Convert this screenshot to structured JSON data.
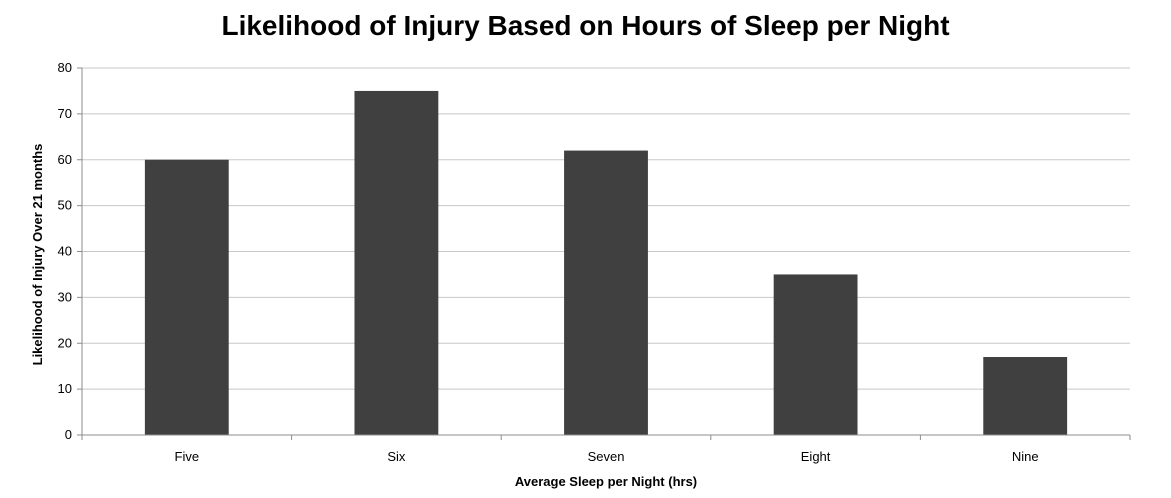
{
  "chart_data": {
    "type": "bar",
    "title": "Likelihood of Injury Based on Hours of Sleep per Night",
    "xlabel": "Average Sleep per Night (hrs)",
    "ylabel": "Likelihood of Injury Over 21 months",
    "categories": [
      "Five",
      "Six",
      "Seven",
      "Eight",
      "Nine"
    ],
    "values": [
      60,
      75,
      62,
      35,
      17
    ],
    "ylim": [
      0,
      80
    ],
    "yticks": [
      0,
      10,
      20,
      30,
      40,
      50,
      60,
      70,
      80
    ],
    "grid": true,
    "legend": "none",
    "colors": {
      "bar": "#404040",
      "grid": "#c8c8c8",
      "axis": "#8c8c8c"
    }
  }
}
